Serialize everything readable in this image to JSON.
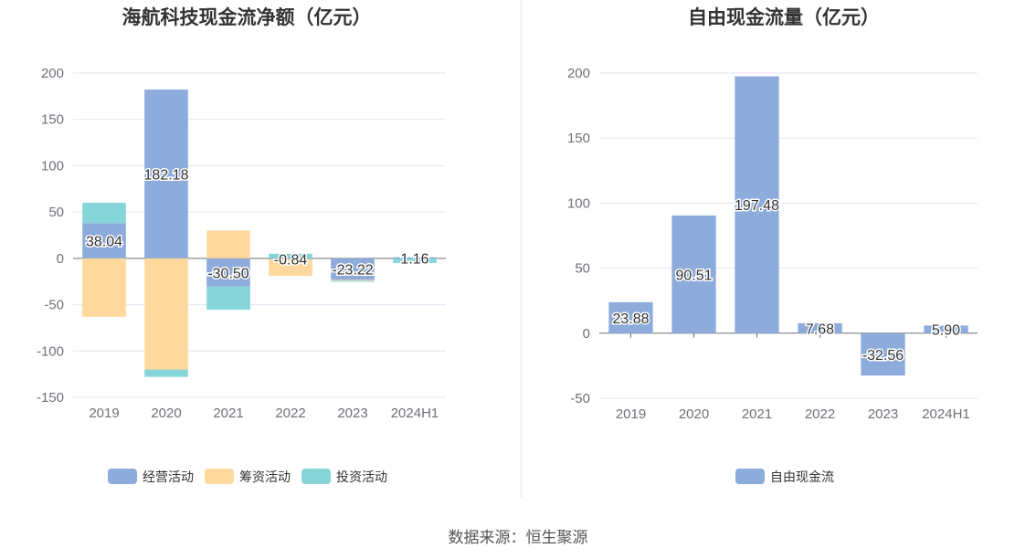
{
  "source": "数据来源：恒生聚源",
  "chart_data": [
    {
      "type": "bar",
      "stacked": true,
      "title": "海航科技现金流净额（亿元）",
      "categories": [
        "2019",
        "2020",
        "2021",
        "2022",
        "2023",
        "2024H1"
      ],
      "ylim": [
        -150,
        200
      ],
      "yticks": [
        200,
        150,
        100,
        50,
        0,
        -50,
        -100,
        -150
      ],
      "grid": true,
      "legend_position": "bottom",
      "series": [
        {
          "name": "经营活动",
          "color": "#8eacdb",
          "values": [
            38.04,
            182.18,
            -30.5,
            -0.84,
            -23.22,
            1.16
          ]
        },
        {
          "name": "筹资活动",
          "color": "#fed89d",
          "values": [
            -63,
            -120,
            30,
            -18,
            -1,
            0
          ]
        },
        {
          "name": "投资活动",
          "color": "#86d5d9",
          "values": [
            22,
            -8,
            -25,
            5,
            -1,
            -5
          ]
        }
      ],
      "data_labels": [
        "38.04",
        "182.18",
        "-30.50",
        "-0.84",
        "-23.22",
        "1.16"
      ]
    },
    {
      "type": "bar",
      "title": "自由现金流量（亿元）",
      "categories": [
        "2019",
        "2020",
        "2021",
        "2022",
        "2023",
        "2024H1"
      ],
      "ylim": [
        -50,
        200
      ],
      "yticks": [
        200,
        150,
        100,
        50,
        0,
        -50
      ],
      "grid": true,
      "legend_position": "bottom",
      "series": [
        {
          "name": "自由现金流",
          "color": "#8eacdb",
          "values": [
            23.88,
            90.51,
            197.48,
            7.68,
            -32.56,
            5.9
          ]
        }
      ],
      "data_labels": [
        "23.88",
        "90.51",
        "197.48",
        "7.68",
        "-32.56",
        "5.90"
      ]
    }
  ]
}
